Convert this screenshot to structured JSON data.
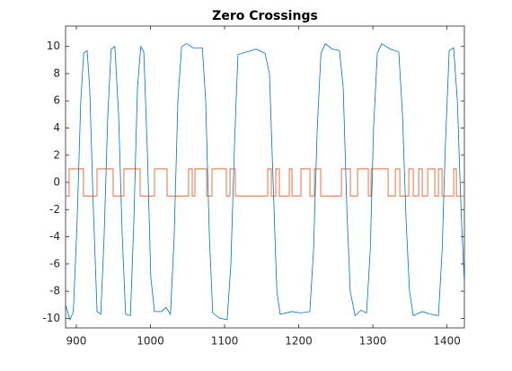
{
  "chart_data": {
    "type": "line",
    "title": "Zero Crossings",
    "xlim": [
      885.5,
      1423.5
    ],
    "ylim": [
      -10.7,
      11.5
    ],
    "xticks": [
      900,
      1000,
      1100,
      1200,
      1300,
      1400
    ],
    "yticks": [
      -10,
      -8,
      -6,
      -4,
      -2,
      0,
      2,
      4,
      6,
      8,
      10
    ],
    "grid": false,
    "series": [
      {
        "color": "#0072bd",
        "x": [
          885.5,
          891.5,
          896,
          901,
          906,
          910,
          914.5,
          918,
          923,
          928,
          933,
          937.5,
          942.5,
          947,
          952,
          957,
          962,
          966.5,
          973,
          977.5,
          982.5,
          987,
          991,
          996,
          1000.5,
          1005.5,
          1015,
          1021,
          1027,
          1032,
          1037,
          1042,
          1049,
          1057.5,
          1070,
          1074.5,
          1079.5,
          1084,
          1094,
          1103.5,
          1108.5,
          1113.5,
          1118,
          1130,
          1142.5,
          1154.5,
          1160.5,
          1165.5,
          1170.5,
          1175,
          1191,
          1203,
          1215,
          1220,
          1225,
          1230,
          1236,
          1245.5,
          1255,
          1260,
          1265,
          1269.5,
          1276,
          1284,
          1291.5,
          1296.5,
          1301,
          1306,
          1312,
          1324,
          1335,
          1340,
          1345,
          1349.5,
          1354.5,
          1366.5,
          1379,
          1388.5,
          1393.5,
          1398,
          1403,
          1409,
          1414,
          1419,
          1423.5
        ],
        "values": [
          -9,
          -10.1,
          -9.5,
          -3,
          6,
          9.5,
          9.7,
          7,
          -2,
          -9.5,
          -9.7,
          -4,
          5,
          9.8,
          10,
          5,
          -4,
          -9.7,
          -9.8,
          -3,
          7,
          10,
          9.6,
          2,
          -7,
          -9.5,
          -9.5,
          -9.2,
          -9.7,
          -4,
          6,
          10,
          10.2,
          9.9,
          9.9,
          6,
          -4,
          -9.6,
          -10,
          -10.1,
          -6,
          3,
          9.4,
          9.6,
          9.8,
          9.5,
          8,
          0,
          -8,
          -9.7,
          -9.5,
          -9.6,
          -9.5,
          -5,
          4,
          9.5,
          10.2,
          9.8,
          9.7,
          7,
          -2,
          -8,
          -9.8,
          -9.4,
          -9.6,
          -5,
          4,
          9.5,
          10.2,
          9.8,
          9.6,
          5,
          -3,
          -8,
          -9.8,
          -9.5,
          -9.7,
          -9.8,
          -5,
          3,
          9.7,
          9.9,
          6,
          -2,
          -7.5
        ]
      },
      {
        "color": "#d95319",
        "x": [
          885.5,
          890.3,
          890.3,
          909.7,
          909.7,
          927.9,
          927.9,
          949.7,
          949.7,
          964.2,
          964.2,
          986.1,
          986.1,
          1005.5,
          1005.5,
          1022.4,
          1022.4,
          1051.5,
          1051.5,
          1056.4,
          1056.4,
          1060,
          1060,
          1075.8,
          1075.8,
          1083,
          1083,
          1102.4,
          1102.4,
          1107.3,
          1107.3,
          1114.5,
          1114.5,
          1158.2,
          1158.2,
          1163,
          1163,
          1169.1,
          1169.1,
          1173.9,
          1173.9,
          1187.3,
          1187.3,
          1190.9,
          1190.9,
          1203,
          1203,
          1215.2,
          1215.2,
          1221.2,
          1221.2,
          1229.7,
          1229.7,
          1257.6,
          1257.6,
          1269.7,
          1269.7,
          1279.4,
          1279.4,
          1293.9,
          1293.9,
          1297.6,
          1297.6,
          1320.6,
          1320.6,
          1330.3,
          1330.3,
          1336.4,
          1336.4,
          1348.5,
          1348.5,
          1354.5,
          1354.5,
          1361.8,
          1361.8,
          1366.7,
          1366.7,
          1373.9,
          1373.9,
          1383.6,
          1383.6,
          1388.5,
          1388.5,
          1393.3,
          1393.3,
          1409.1,
          1409.1,
          1412.7,
          1412.7,
          1423.5
        ],
        "values": [
          -1,
          -1,
          1,
          1,
          -1,
          -1,
          1,
          1,
          -1,
          -1,
          1,
          1,
          -1,
          -1,
          1,
          1,
          -1,
          -1,
          1,
          1,
          -1,
          -1,
          1,
          1,
          -1,
          -1,
          1,
          1,
          -1,
          -1,
          1,
          1,
          -1,
          -1,
          1,
          1,
          -1,
          -1,
          1,
          1,
          -1,
          -1,
          1,
          1,
          -1,
          -1,
          1,
          1,
          -1,
          -1,
          1,
          1,
          -1,
          -1,
          1,
          1,
          -1,
          -1,
          1,
          1,
          -1,
          -1,
          1,
          1,
          -1,
          -1,
          1,
          1,
          -1,
          -1,
          1,
          1,
          -1,
          -1,
          1,
          1,
          -1,
          -1,
          1,
          1,
          -1,
          -1,
          1,
          1,
          -1,
          -1,
          1,
          1,
          -1,
          -1
        ]
      }
    ]
  }
}
